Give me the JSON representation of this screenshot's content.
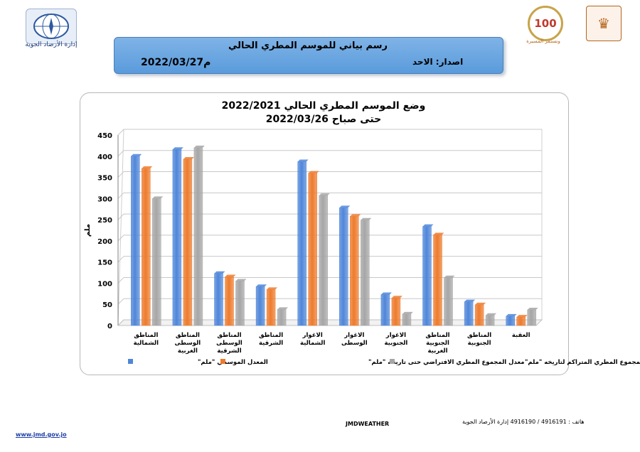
{
  "header": {
    "title": "رسم بياني للموسم المطري الحالي",
    "issue_label": "اصدار: الاحد",
    "issue_date": "2022/03/27م"
  },
  "logos": {
    "left_caption": "إدارة الأرصاد الجوية",
    "centenary_text": "100",
    "centenary_caption": "ونستمر المسيرة"
  },
  "footer": {
    "website": "www.jmd.gov.jo",
    "mid": "JMDWEATHER",
    "contact": "هاتف : 4916191 / 4916190 إدارة الأرصاد الجوية"
  },
  "colors": {
    "blue": "#4f86d9",
    "orange": "#ee7b2d",
    "gray": "#a6a6a6",
    "header": "#6aa6e2"
  },
  "chart_data": {
    "type": "bar",
    "title": "وضع الموسم المطري الحالي 2022/2021",
    "subtitle": "حتى صباح 2022/03/26",
    "ylabel": "ملم",
    "ylim": [
      0,
      450
    ],
    "yticks": [
      0,
      50,
      100,
      150,
      200,
      250,
      300,
      350,
      400,
      450
    ],
    "categories": [
      "المناطق الشمالية",
      "المناطق الوسطى الغربية",
      "المناطق الوسطى الشرقية",
      "المناطق الشرقية",
      "الاغوار الشمالية",
      "الاغوار الوسطى",
      "الاغوار الجنوبية",
      "المناطق الجنوبية الغربية",
      "المناطق الجنوبية",
      "العقبة"
    ],
    "series": [
      {
        "name": "المعدل الموسمي \"ملم\"",
        "values": [
          400,
          416,
          123,
          92,
          387,
          278,
          73,
          234,
          56,
          22
        ]
      },
      {
        "name": "معدل المجموع المطري الافتراضي حتى تاريخه \"ملم\"",
        "values": [
          371,
          393,
          115,
          85,
          360,
          258,
          65,
          214,
          49,
          20
        ]
      },
      {
        "name": "معدل المجموع المطري المتراكم لتاريخه \"ملم\"",
        "values": [
          300,
          420,
          105,
          38,
          307,
          249,
          27,
          113,
          24,
          37
        ]
      }
    ],
    "legend": "bottom"
  }
}
